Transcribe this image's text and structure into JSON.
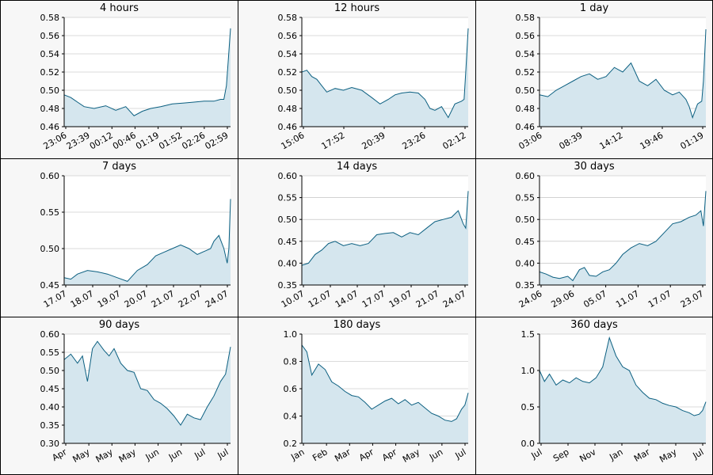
{
  "colors": {
    "line": "#0b5f80",
    "fill": "#d5e6ee",
    "plot_bg": "#ffffff",
    "grid": "#b8b8b8",
    "axis": "#000000",
    "page_bg": "#f7f7f7"
  },
  "chart_data": [
    {
      "type": "area",
      "title": "4 hours",
      "ylim": [
        0.46,
        0.58
      ],
      "yticks": [
        "0.46",
        "0.48",
        "0.50",
        "0.52",
        "0.54",
        "0.56",
        "0.58"
      ],
      "xticks": [
        "23:06",
        "23:39",
        "00:12",
        "00:46",
        "01:19",
        "01:52",
        "02:26",
        "02:59"
      ],
      "x": [
        0,
        0.04,
        0.08,
        0.12,
        0.18,
        0.25,
        0.31,
        0.37,
        0.42,
        0.47,
        0.52,
        0.58,
        0.65,
        0.72,
        0.78,
        0.84,
        0.9,
        0.94,
        0.96,
        0.975,
        0.985,
        1.0
      ],
      "y": [
        0.495,
        0.492,
        0.487,
        0.482,
        0.48,
        0.483,
        0.478,
        0.482,
        0.472,
        0.477,
        0.48,
        0.482,
        0.485,
        0.486,
        0.487,
        0.488,
        0.488,
        0.49,
        0.49,
        0.505,
        0.53,
        0.568
      ]
    },
    {
      "type": "area",
      "title": "12 hours",
      "ylim": [
        0.46,
        0.58
      ],
      "yticks": [
        "0.46",
        "0.48",
        "0.50",
        "0.52",
        "0.54",
        "0.56",
        "0.58"
      ],
      "xticks": [
        "15:06",
        "17:52",
        "20:39",
        "23:26",
        "02:12"
      ],
      "x": [
        0,
        0.03,
        0.06,
        0.09,
        0.12,
        0.15,
        0.2,
        0.25,
        0.3,
        0.36,
        0.42,
        0.47,
        0.52,
        0.56,
        0.6,
        0.65,
        0.7,
        0.74,
        0.77,
        0.8,
        0.84,
        0.88,
        0.92,
        0.96,
        0.975,
        0.985,
        1.0
      ],
      "y": [
        0.52,
        0.522,
        0.515,
        0.512,
        0.505,
        0.498,
        0.502,
        0.5,
        0.503,
        0.5,
        0.492,
        0.485,
        0.49,
        0.495,
        0.497,
        0.498,
        0.497,
        0.49,
        0.48,
        0.478,
        0.482,
        0.47,
        0.485,
        0.488,
        0.49,
        0.52,
        0.568
      ]
    },
    {
      "type": "area",
      "title": "1 day",
      "ylim": [
        0.46,
        0.58
      ],
      "yticks": [
        "0.46",
        "0.48",
        "0.50",
        "0.52",
        "0.54",
        "0.56",
        "0.58"
      ],
      "xticks": [
        "03:06",
        "08:39",
        "14:12",
        "19:46",
        "01:19"
      ],
      "x": [
        0,
        0.05,
        0.1,
        0.15,
        0.2,
        0.25,
        0.3,
        0.35,
        0.4,
        0.45,
        0.5,
        0.55,
        0.6,
        0.65,
        0.7,
        0.75,
        0.8,
        0.84,
        0.88,
        0.9,
        0.92,
        0.95,
        0.975,
        0.985,
        1.0
      ],
      "y": [
        0.495,
        0.493,
        0.5,
        0.505,
        0.51,
        0.515,
        0.518,
        0.512,
        0.515,
        0.525,
        0.52,
        0.53,
        0.51,
        0.505,
        0.512,
        0.5,
        0.495,
        0.498,
        0.49,
        0.482,
        0.47,
        0.485,
        0.488,
        0.51,
        0.567
      ]
    },
    {
      "type": "area",
      "title": "7 days",
      "ylim": [
        0.45,
        0.6
      ],
      "yticks": [
        "0.45",
        "0.50",
        "0.55",
        "0.60"
      ],
      "xticks": [
        "17.07",
        "18.07",
        "19.07",
        "20.07",
        "21.07",
        "22.07",
        "24.07"
      ],
      "x": [
        0,
        0.04,
        0.08,
        0.14,
        0.2,
        0.26,
        0.32,
        0.38,
        0.44,
        0.5,
        0.55,
        0.6,
        0.65,
        0.7,
        0.75,
        0.8,
        0.85,
        0.88,
        0.9,
        0.93,
        0.96,
        0.98,
        0.99,
        1.0
      ],
      "y": [
        0.46,
        0.458,
        0.465,
        0.47,
        0.468,
        0.465,
        0.46,
        0.455,
        0.47,
        0.478,
        0.49,
        0.495,
        0.5,
        0.505,
        0.5,
        0.492,
        0.497,
        0.5,
        0.51,
        0.518,
        0.5,
        0.48,
        0.5,
        0.568
      ]
    },
    {
      "type": "area",
      "title": "14 days",
      "ylim": [
        0.35,
        0.6
      ],
      "yticks": [
        "0.35",
        "0.40",
        "0.45",
        "0.50",
        "0.55",
        "0.60"
      ],
      "xticks": [
        "10.07",
        "12.07",
        "14.07",
        "17.07",
        "19.07",
        "21.07",
        "24.07"
      ],
      "x": [
        0,
        0.04,
        0.08,
        0.12,
        0.16,
        0.2,
        0.25,
        0.3,
        0.35,
        0.4,
        0.45,
        0.5,
        0.55,
        0.6,
        0.65,
        0.7,
        0.75,
        0.8,
        0.85,
        0.9,
        0.94,
        0.97,
        0.985,
        1.0
      ],
      "y": [
        0.395,
        0.4,
        0.42,
        0.43,
        0.445,
        0.45,
        0.44,
        0.445,
        0.44,
        0.445,
        0.465,
        0.468,
        0.47,
        0.46,
        0.47,
        0.465,
        0.48,
        0.495,
        0.5,
        0.505,
        0.52,
        0.49,
        0.48,
        0.565
      ]
    },
    {
      "type": "area",
      "title": "30 days",
      "ylim": [
        0.35,
        0.6
      ],
      "yticks": [
        "0.35",
        "0.40",
        "0.45",
        "0.50",
        "0.55",
        "0.60"
      ],
      "xticks": [
        "24.06",
        "29.06",
        "05.07",
        "11.07",
        "17.07",
        "23.07"
      ],
      "x": [
        0,
        0.04,
        0.08,
        0.12,
        0.17,
        0.2,
        0.24,
        0.27,
        0.3,
        0.34,
        0.38,
        0.42,
        0.46,
        0.5,
        0.55,
        0.6,
        0.65,
        0.7,
        0.75,
        0.8,
        0.85,
        0.9,
        0.94,
        0.97,
        0.985,
        1.0
      ],
      "y": [
        0.38,
        0.375,
        0.368,
        0.365,
        0.37,
        0.36,
        0.385,
        0.39,
        0.372,
        0.37,
        0.38,
        0.385,
        0.4,
        0.42,
        0.435,
        0.445,
        0.44,
        0.45,
        0.47,
        0.49,
        0.495,
        0.505,
        0.51,
        0.52,
        0.485,
        0.565
      ]
    },
    {
      "type": "area",
      "title": "90 days",
      "ylim": [
        0.3,
        0.6
      ],
      "yticks": [
        "0.30",
        "0.35",
        "0.40",
        "0.45",
        "0.50",
        "0.55",
        "0.60"
      ],
      "xticks": [
        "Apr",
        "May",
        "May",
        "May",
        "Jun",
        "Jun",
        "Jul",
        "Jul"
      ],
      "x": [
        0,
        0.04,
        0.08,
        0.11,
        0.14,
        0.17,
        0.2,
        0.24,
        0.27,
        0.3,
        0.34,
        0.38,
        0.42,
        0.46,
        0.5,
        0.54,
        0.58,
        0.62,
        0.66,
        0.7,
        0.74,
        0.78,
        0.82,
        0.86,
        0.9,
        0.94,
        0.97,
        1.0
      ],
      "y": [
        0.53,
        0.545,
        0.52,
        0.54,
        0.47,
        0.56,
        0.58,
        0.555,
        0.54,
        0.56,
        0.52,
        0.5,
        0.495,
        0.45,
        0.445,
        0.42,
        0.41,
        0.395,
        0.375,
        0.35,
        0.38,
        0.37,
        0.365,
        0.4,
        0.43,
        0.47,
        0.49,
        0.565
      ]
    },
    {
      "type": "area",
      "title": "180 days",
      "ylim": [
        0.2,
        1.0
      ],
      "yticks": [
        "0.2",
        "0.4",
        "0.6",
        "0.8",
        "1.0"
      ],
      "xticks": [
        "Jan",
        "Feb",
        "Mar",
        "Apr",
        "Apr",
        "May",
        "Jun",
        "Jul"
      ],
      "x": [
        0,
        0.03,
        0.06,
        0.1,
        0.14,
        0.18,
        0.22,
        0.26,
        0.3,
        0.34,
        0.38,
        0.42,
        0.46,
        0.5,
        0.54,
        0.58,
        0.62,
        0.66,
        0.7,
        0.74,
        0.78,
        0.82,
        0.86,
        0.9,
        0.93,
        0.96,
        0.98,
        1.0
      ],
      "y": [
        0.92,
        0.87,
        0.7,
        0.78,
        0.74,
        0.65,
        0.62,
        0.58,
        0.55,
        0.54,
        0.5,
        0.45,
        0.48,
        0.51,
        0.53,
        0.49,
        0.52,
        0.48,
        0.5,
        0.46,
        0.42,
        0.4,
        0.37,
        0.36,
        0.38,
        0.45,
        0.48,
        0.57
      ]
    },
    {
      "type": "area",
      "title": "360 days",
      "ylim": [
        0.0,
        1.5
      ],
      "yticks": [
        "0.0",
        "0.5",
        "1.0",
        "1.5"
      ],
      "xticks": [
        "Jul",
        "Sep",
        "Nov",
        "Jan",
        "Mar",
        "May",
        "Jul"
      ],
      "x": [
        0,
        0.03,
        0.06,
        0.1,
        0.14,
        0.18,
        0.22,
        0.26,
        0.3,
        0.34,
        0.38,
        0.42,
        0.46,
        0.5,
        0.54,
        0.58,
        0.62,
        0.66,
        0.7,
        0.74,
        0.78,
        0.82,
        0.86,
        0.9,
        0.93,
        0.96,
        0.98,
        1.0
      ],
      "y": [
        1.0,
        0.85,
        0.95,
        0.8,
        0.87,
        0.83,
        0.9,
        0.85,
        0.83,
        0.9,
        1.05,
        1.45,
        1.2,
        1.05,
        1.0,
        0.8,
        0.7,
        0.62,
        0.6,
        0.55,
        0.52,
        0.5,
        0.45,
        0.42,
        0.38,
        0.4,
        0.45,
        0.57
      ]
    }
  ]
}
